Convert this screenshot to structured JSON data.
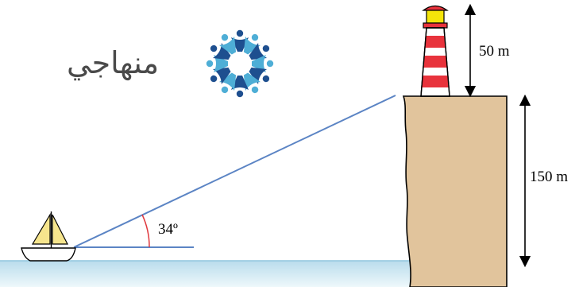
{
  "logo": {
    "text": "منهاجي",
    "icon": "circle-of-people-icon",
    "colors": {
      "dark": "#1e4f8f",
      "light": "#4eaed6"
    }
  },
  "figure": {
    "angle_label": "34º",
    "lighthouse_height_label": "50 m",
    "cliff_height_label": "150 m",
    "colors": {
      "sight_line": "#5b84c4",
      "angle_arc": "#e0393e",
      "cliff_fill": "#e1c49c",
      "sea": "#cfe8f2",
      "sail": "#f6e58d",
      "lighthouse_red": "#e8333c",
      "lamp": "#f4e50a"
    }
  }
}
